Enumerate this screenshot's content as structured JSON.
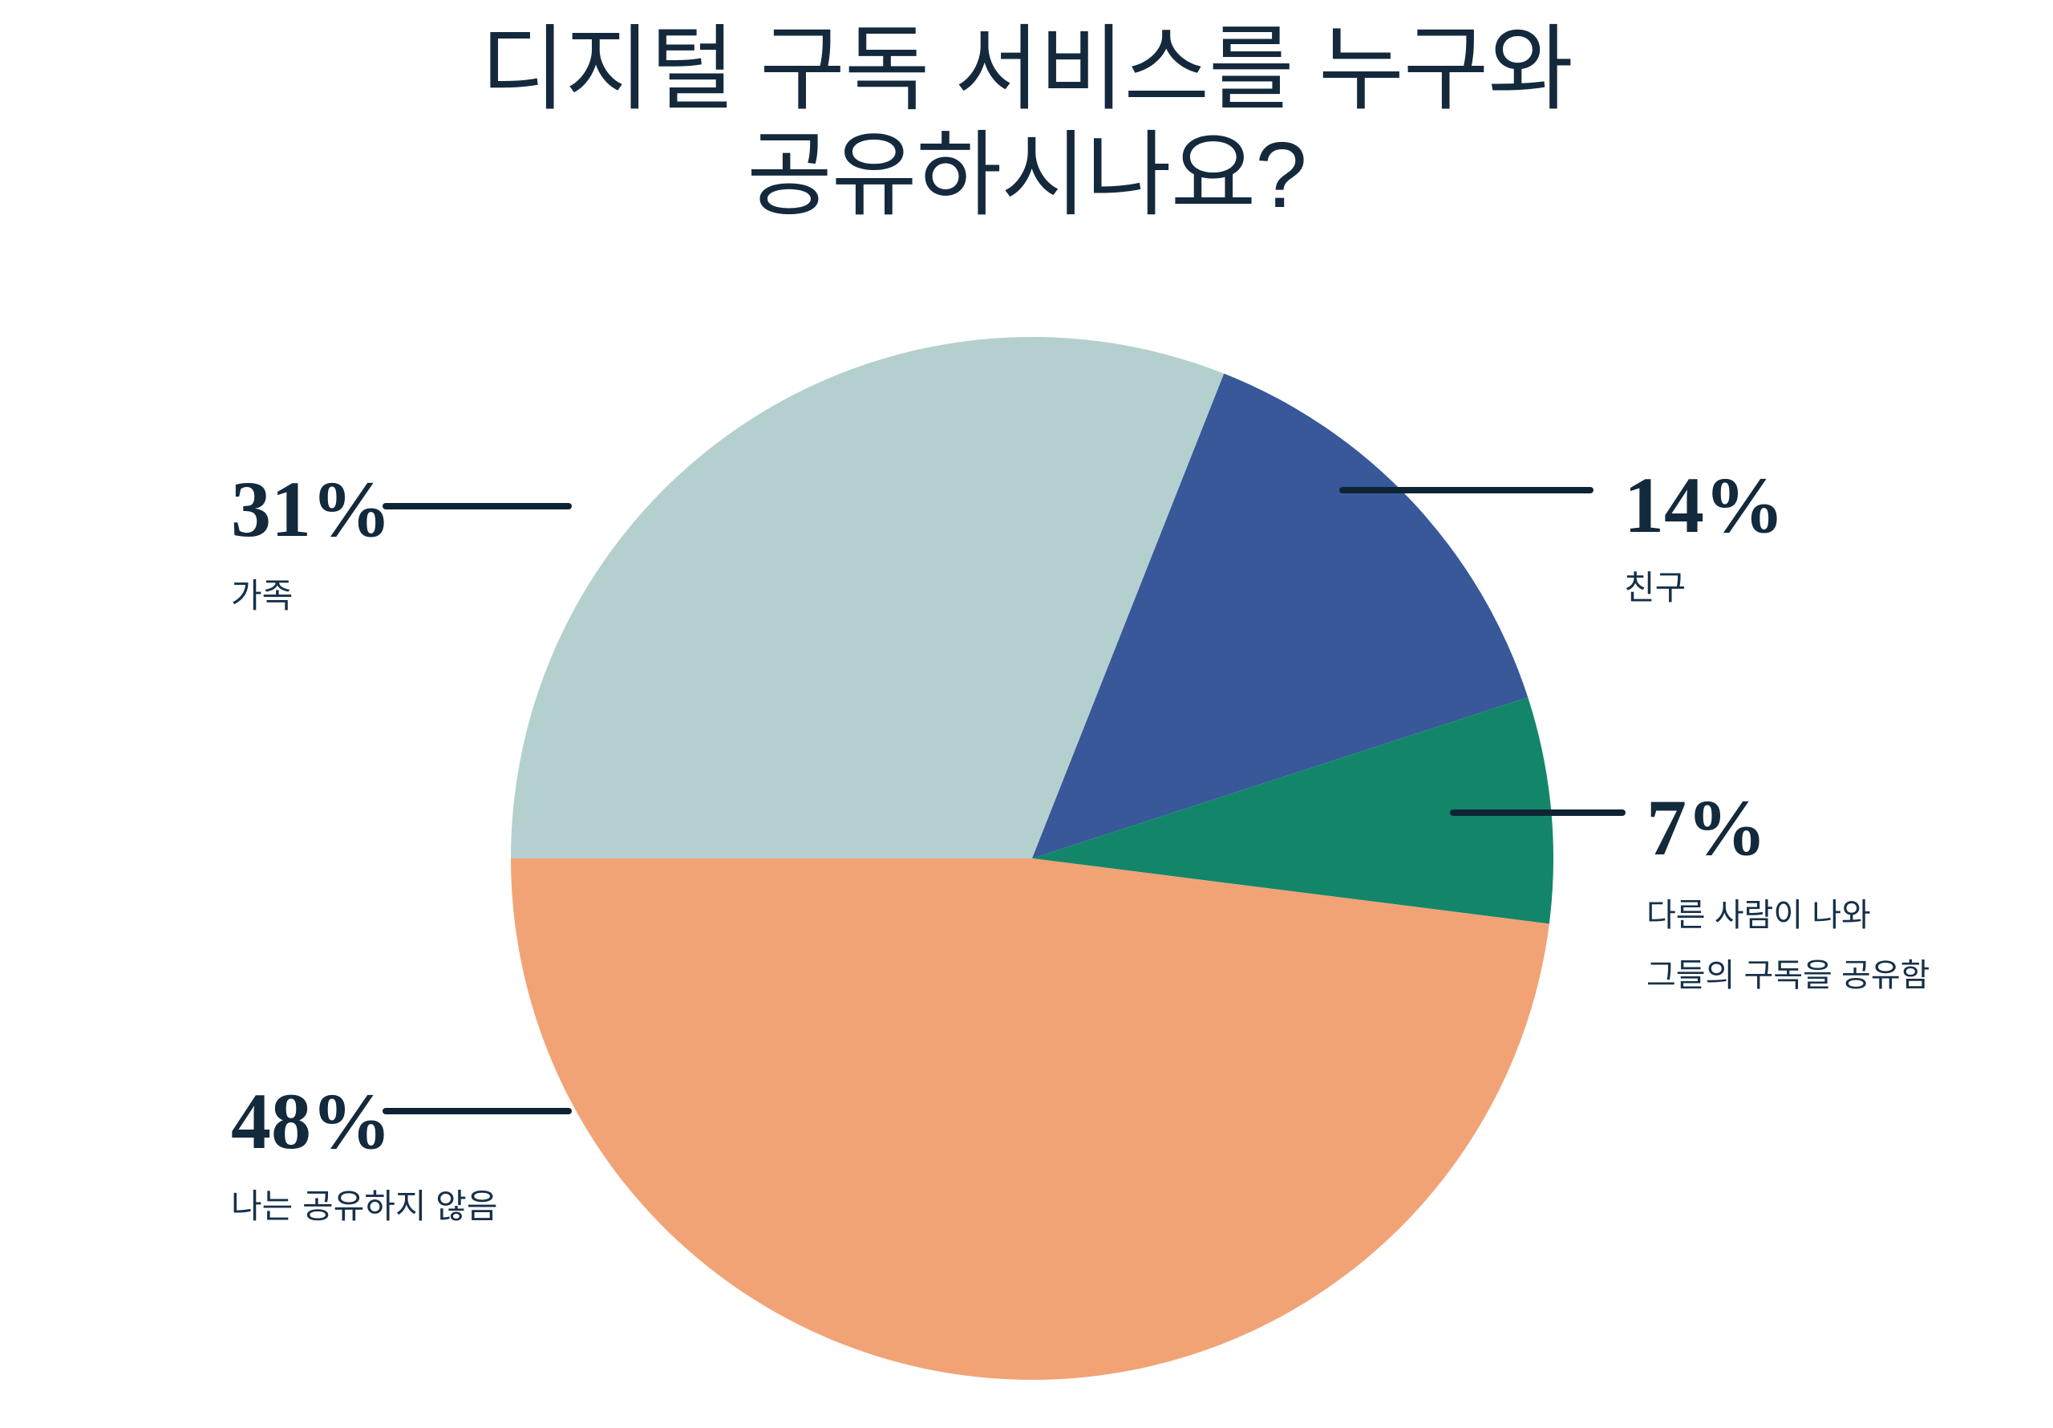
{
  "title": {
    "line1": "디지털 구독 서비스를 누구와",
    "line2": "공유하시나요?",
    "full": "디지털 구독 서비스를 누구와 공유하시나요?"
  },
  "colors": {
    "background": "#ffffff",
    "title_text": "#14293c",
    "percent_text": "#13293c",
    "label_text": "#17304a",
    "leader_line": "#0e2434",
    "slice_family": "#b4d0ce",
    "slice_friends": "#38589a",
    "slice_shared_with_me": "#13866a",
    "slice_no_share": "#f2a376"
  },
  "chart_data": {
    "type": "pie",
    "title": "디지털 구독 서비스를 누구와 공유하시나요?",
    "start_angle_deg": 270,
    "direction": "clockwise",
    "legend": "none (callout labels with leader lines)",
    "slices": [
      {
        "id": "family",
        "label": "가족",
        "value_pct": 31,
        "display": "31%",
        "color": "#b4d0ce",
        "label_side": "left"
      },
      {
        "id": "friends",
        "label": "친구",
        "value_pct": 14,
        "display": "14%",
        "color": "#38589a",
        "label_side": "right"
      },
      {
        "id": "shared-with-me",
        "label": "다른 사람이 나와 그들의 구독을 공유함",
        "label_lines": [
          "다른 사람이 나와",
          "그들의 구독을 공유함"
        ],
        "value_pct": 7,
        "display": "7%",
        "color": "#13866a",
        "label_side": "right"
      },
      {
        "id": "no-share",
        "label": "나는 공유하지 않음",
        "value_pct": 48,
        "display": "48%",
        "color": "#f2a376",
        "label_side": "left"
      }
    ]
  }
}
